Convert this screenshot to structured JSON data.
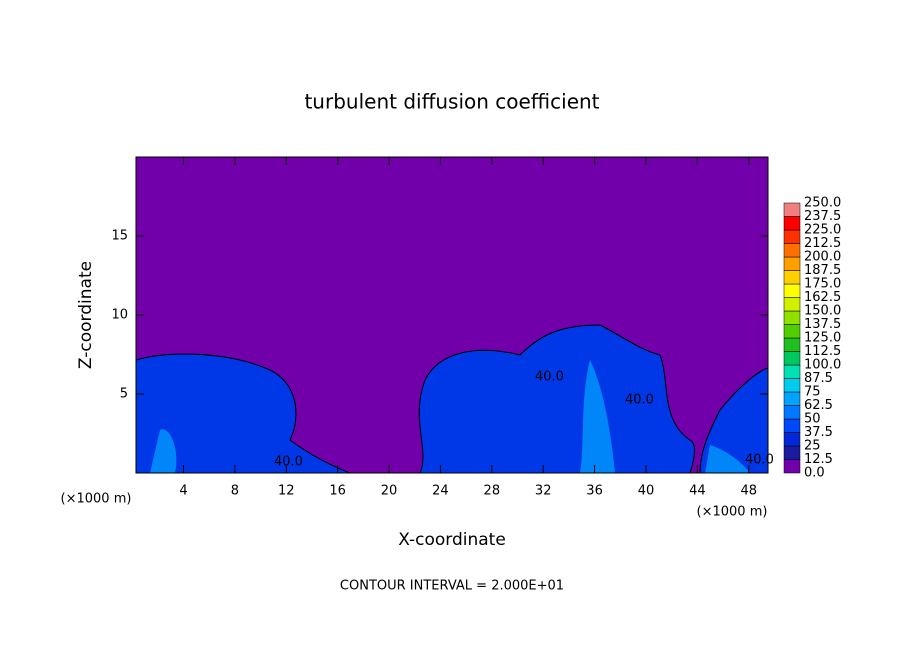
{
  "chart_data": {
    "type": "contour",
    "title": "turbulent diffusion coefficient",
    "x_label": "X-coordinate",
    "y_label": "Z-coordinate",
    "x_unit": "(×1000 m)",
    "x_unit_right": "(×1000 m)",
    "footnote": "CONTOUR INTERVAL = 2.000E+01",
    "xlim": [
      0.3,
      49.5
    ],
    "xticks": [
      4,
      8,
      12,
      16,
      20,
      24,
      28,
      32,
      36,
      40,
      44,
      48
    ],
    "ylim": [
      0,
      20
    ],
    "yticks": [
      5,
      10,
      15
    ],
    "contour_labels": [
      "40.0",
      "40.0",
      "40.0",
      "40.0"
    ],
    "background_color": "#7200aa",
    "colorbar": {
      "levels": [
        {
          "value": 0,
          "label": "0.0"
        },
        12.5,
        25,
        37.5,
        50,
        62.5,
        75,
        87.5,
        {
          "value": 100,
          "label": "100.0"
        },
        112.5,
        {
          "value": 125,
          "label": "125.0"
        },
        137.5,
        {
          "value": 150,
          "label": "150.0"
        },
        162.5,
        {
          "value": 175,
          "label": "175.0"
        },
        187.5,
        {
          "value": 200,
          "label": "200.0"
        },
        212.5,
        {
          "value": 225,
          "label": "225.0"
        },
        237.5,
        {
          "value": 250,
          "label": "250.0"
        }
      ],
      "colors": [
        "#7200aa",
        "#1a1aa0",
        "#0028d8",
        "#0048f8",
        "#0078ff",
        "#00a4ff",
        "#00ccf0",
        "#00e0b0",
        "#00c860",
        "#20c020",
        "#50d000",
        "#90e000",
        "#d0f000",
        "#ffff00",
        "#ffd000",
        "#ffa000",
        "#ff7000",
        "#ff3000",
        "#ff0000",
        "#f08080"
      ]
    }
  }
}
